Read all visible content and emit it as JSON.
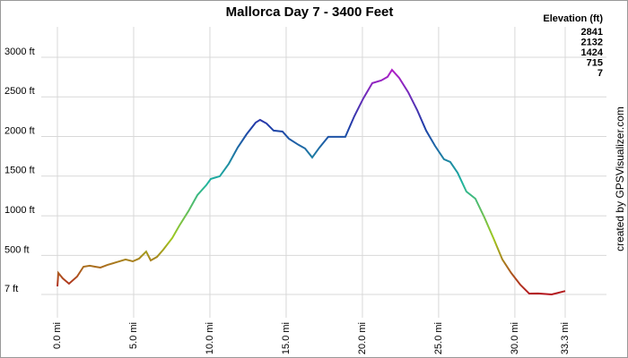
{
  "chart_data": {
    "type": "line",
    "title": "Mallorca Day 7 - 3400 Feet",
    "credit": "created by GPSVisualizer.com",
    "x": [
      0,
      0.06,
      0.35,
      0.76,
      1.29,
      1.71,
      2.12,
      2.47,
      2.82,
      3.29,
      3.88,
      4.47,
      4.94,
      5.35,
      5.82,
      6.12,
      6.53,
      6.94,
      7.53,
      8.0,
      8.59,
      9.18,
      9.76,
      10.06,
      10.65,
      11.24,
      11.82,
      12.41,
      13.0,
      13.29,
      13.71,
      14.18,
      14.76,
      15.18,
      15.82,
      16.24,
      16.71,
      17.18,
      17.76,
      18.88,
      19.47,
      20.06,
      20.65,
      21.24,
      21.65,
      21.94,
      22.41,
      23.0,
      23.59,
      24.18,
      24.76,
      25.35,
      25.76,
      26.24,
      26.82,
      27.41,
      28.0,
      28.59,
      29.18,
      29.76,
      30.35,
      30.94,
      31.53,
      32.41,
      33.3
    ],
    "y": [
      109,
      278,
      210,
      143,
      233,
      357,
      369,
      357,
      346,
      380,
      414,
      448,
      425,
      459,
      549,
      436,
      481,
      572,
      719,
      877,
      1058,
      1261,
      1386,
      1465,
      1499,
      1657,
      1860,
      2030,
      2176,
      2210,
      2165,
      2075,
      2063,
      1973,
      1894,
      1849,
      1736,
      1860,
      1996,
      1996,
      2256,
      2481,
      2674,
      2708,
      2753,
      2841,
      2741,
      2560,
      2335,
      2075,
      1883,
      1713,
      1679,
      1544,
      1306,
      1216,
      979,
      719,
      448,
      278,
      131,
      18,
      20,
      7,
      50
    ],
    "xlim": [
      0,
      33.3
    ],
    "ylim": [
      7,
      3000
    ],
    "xticks": [
      {
        "value": 0,
        "label": "0.0 mi"
      },
      {
        "value": 5,
        "label": "5.0 mi"
      },
      {
        "value": 10,
        "label": "10.0 mi"
      },
      {
        "value": 15,
        "label": "15.0 mi"
      },
      {
        "value": 20,
        "label": "20.0 mi"
      },
      {
        "value": 25,
        "label": "25.0 mi"
      },
      {
        "value": 30,
        "label": "30.0 mi"
      },
      {
        "value": 33.3,
        "label": "33.3 mi"
      }
    ],
    "yticks": [
      {
        "value": 7,
        "label": "7 ft"
      },
      {
        "value": 500,
        "label": "500 ft"
      },
      {
        "value": 1000,
        "label": "1000 ft"
      },
      {
        "value": 1500,
        "label": "1500 ft"
      },
      {
        "value": 2000,
        "label": "2000 ft"
      },
      {
        "value": 2500,
        "label": "2500 ft"
      },
      {
        "value": 3000,
        "label": "3000 ft"
      }
    ],
    "grid": true,
    "legend": {
      "title": "Elevation (ft)",
      "entries": [
        {
          "value": 2841,
          "color": "#b21ec8"
        },
        {
          "value": 2132,
          "color": "#1e3ca8"
        },
        {
          "value": 1424,
          "color": "#1eb4a0"
        },
        {
          "value": 715,
          "color": "#a0c81e"
        },
        {
          "value": 7,
          "color": "#b4141e"
        }
      ]
    }
  }
}
